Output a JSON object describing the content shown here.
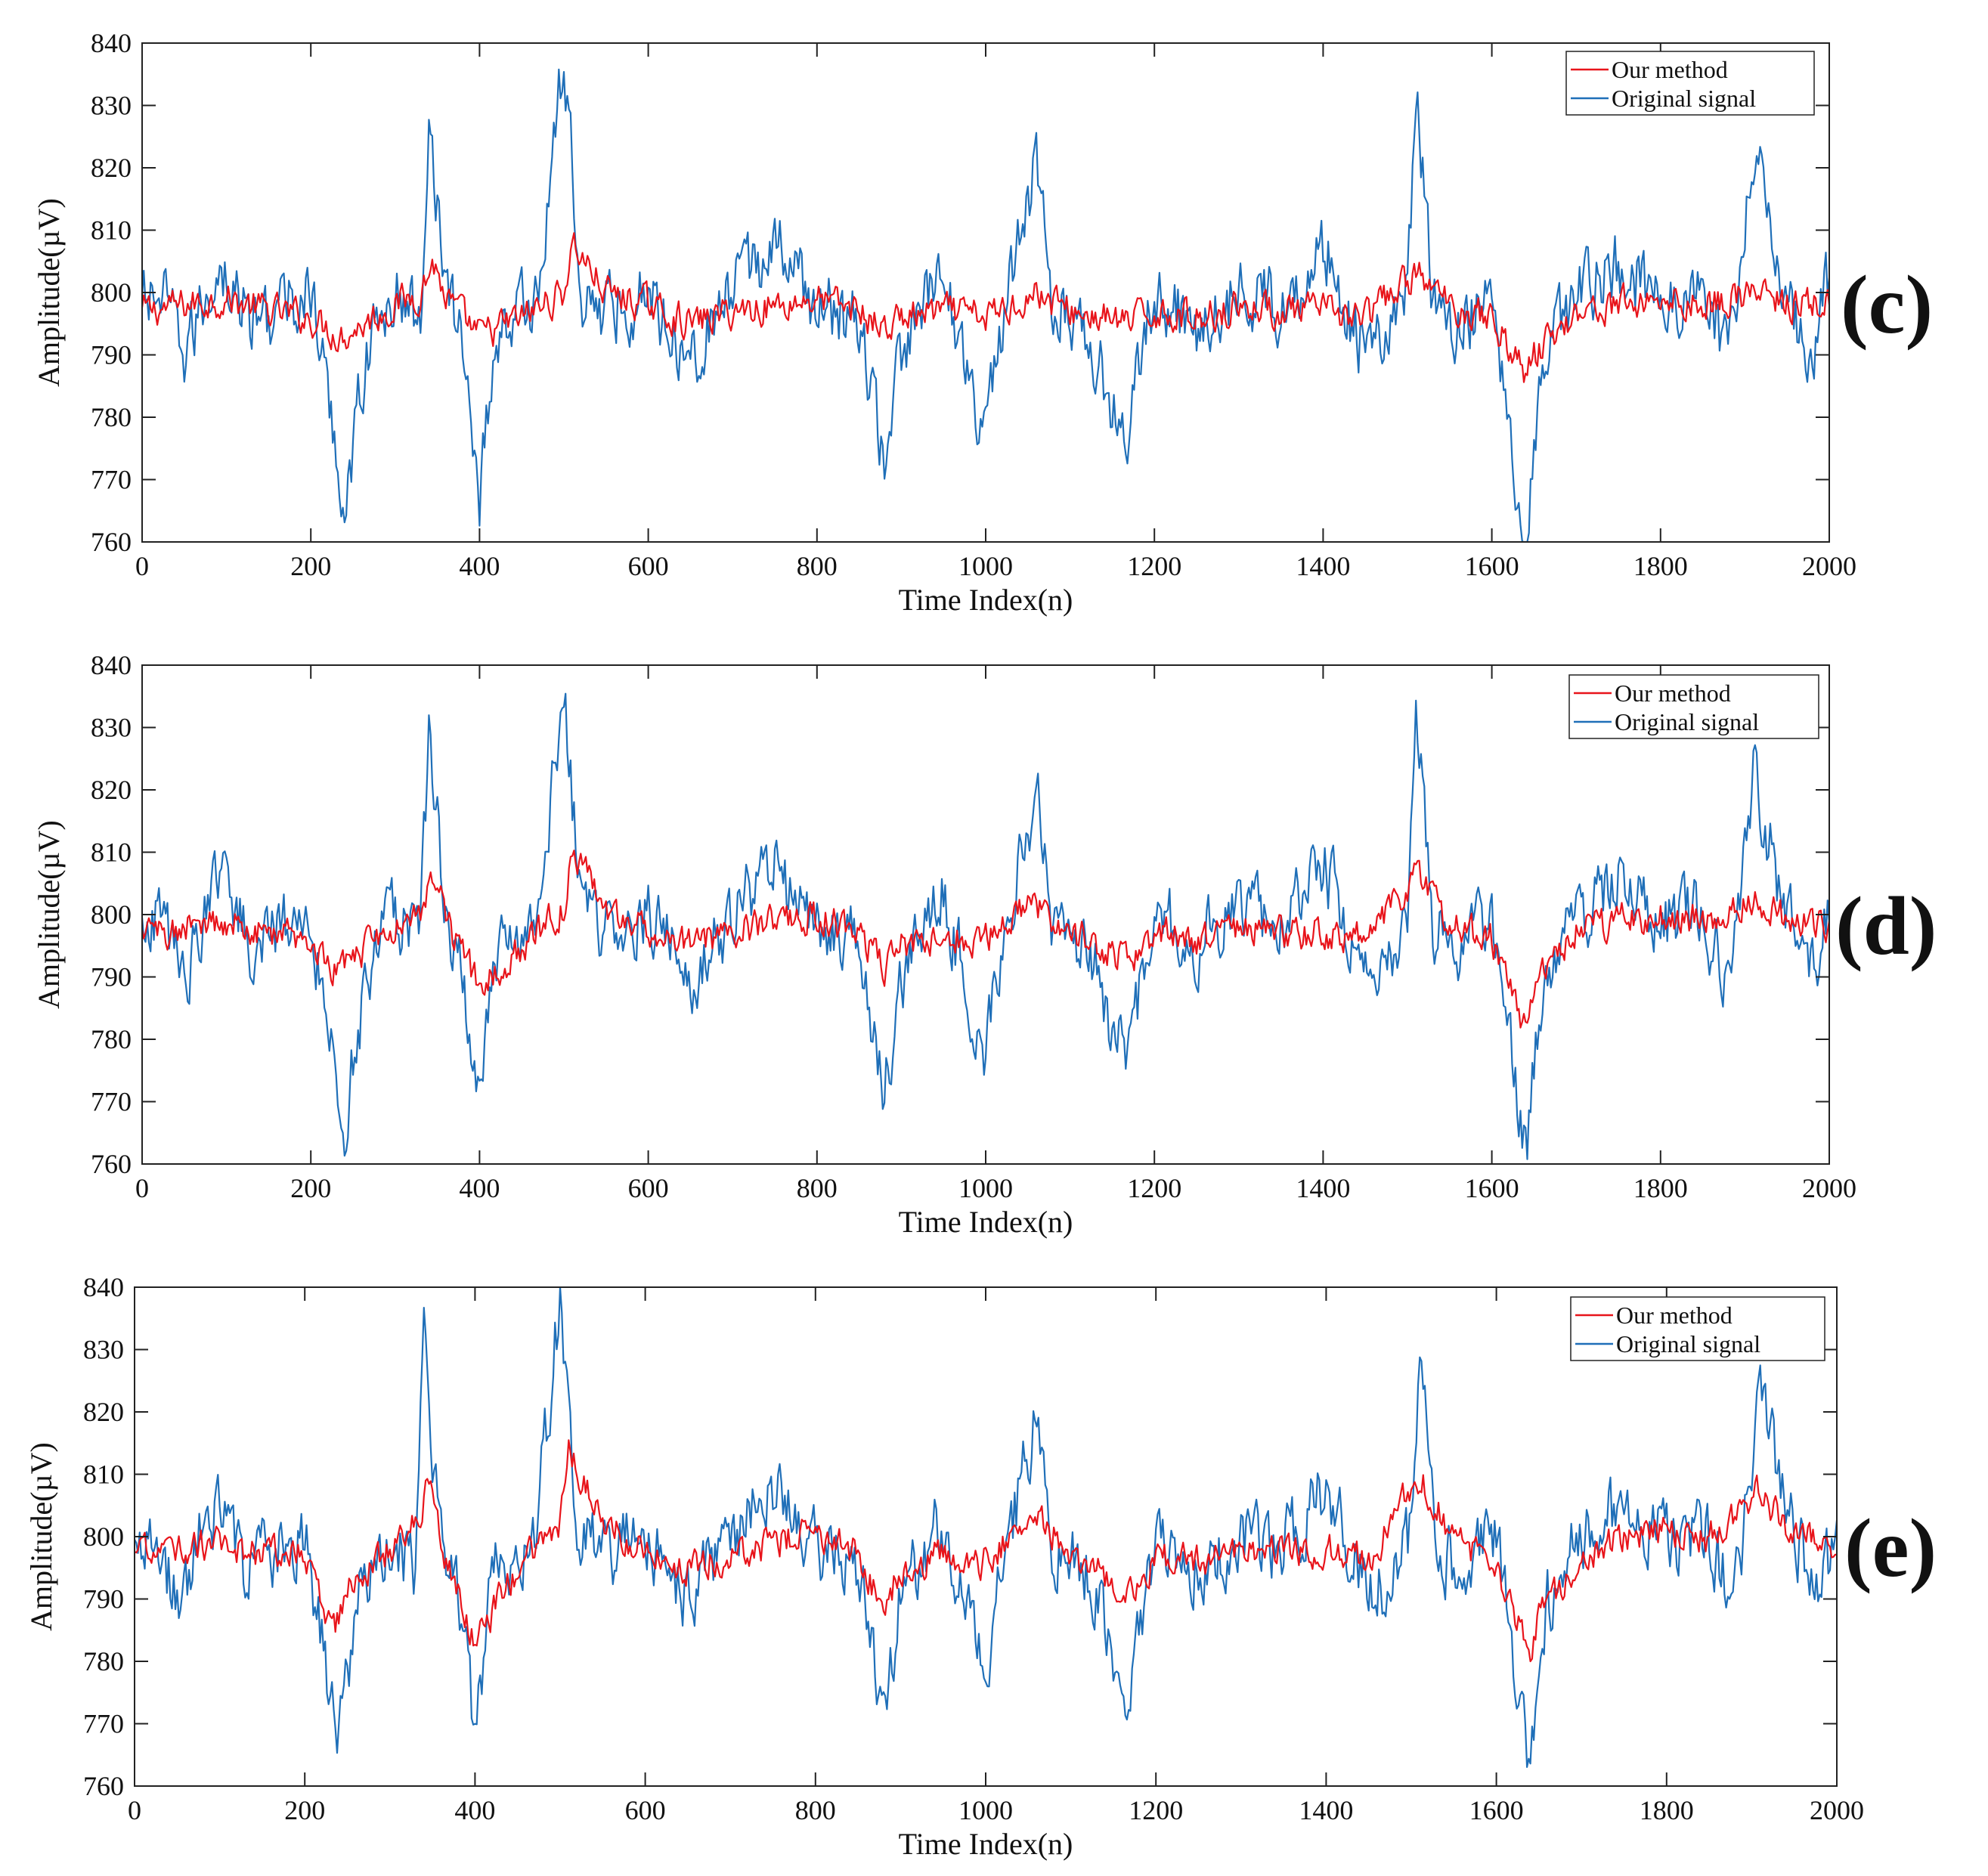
{
  "colors": {
    "our_method": "#e8141b",
    "original_signal": "#1f6fb8",
    "axis": "#222222",
    "background": "#ffffff"
  },
  "chart_data": [
    {
      "type": "line",
      "panel_label": "(c)",
      "xlabel": "Time Index(n)",
      "ylabel": "Amplitude(µV)",
      "xlim": [
        0,
        2000
      ],
      "ylim": [
        760,
        840
      ],
      "x_ticks": [
        "0",
        "200",
        "400",
        "600",
        "800",
        "1000",
        "1200",
        "1400",
        "1600",
        "1800",
        "2000"
      ],
      "y_ticks": [
        "760",
        "770",
        "780",
        "790",
        "800",
        "810",
        "820",
        "830",
        "840"
      ],
      "grid": false,
      "legend_position": "top-right",
      "series": [
        {
          "name": "Our method",
          "color": "#e8141b",
          "x": [
            0,
            50,
            100,
            150,
            200,
            235,
            250,
            300,
            330,
            345,
            360,
            400,
            450,
            500,
            510,
            550,
            600,
            650,
            700,
            750,
            800,
            850,
            880,
            900,
            950,
            1000,
            1060,
            1100,
            1170,
            1200,
            1250,
            1300,
            1350,
            1400,
            1450,
            1510,
            1550,
            1600,
            1640,
            1650,
            1700,
            1750,
            1800,
            1850,
            1910,
            1950,
            2000
          ],
          "values": [
            797,
            798,
            799,
            797,
            796,
            793,
            794,
            798,
            800,
            805,
            799,
            793,
            796,
            800,
            808,
            800,
            798,
            795,
            797,
            798,
            799,
            797,
            794,
            796,
            797,
            796,
            800,
            797,
            795,
            797,
            796,
            798,
            797,
            797,
            796,
            803,
            798,
            796,
            787,
            790,
            797,
            798,
            799,
            798,
            800,
            798,
            798
          ]
        },
        {
          "name": "Original signal",
          "color": "#1f6fb8",
          "x": [
            0,
            20,
            50,
            70,
            90,
            130,
            200,
            240,
            265,
            300,
            330,
            340,
            360,
            380,
            400,
            420,
            450,
            470,
            500,
            520,
            550,
            600,
            650,
            700,
            750,
            800,
            850,
            880,
            900,
            950,
            1000,
            1020,
            1060,
            1080,
            1120,
            1165,
            1200,
            1250,
            1300,
            1350,
            1400,
            1450,
            1480,
            1500,
            1510,
            1530,
            1560,
            1600,
            1640,
            1660,
            1700,
            1750,
            1800,
            1850,
            1880,
            1910,
            1950,
            1980,
            2000
          ],
          "values": [
            798,
            800,
            790,
            797,
            805,
            795,
            800,
            766,
            790,
            800,
            795,
            830,
            800,
            792,
            768,
            794,
            797,
            800,
            838,
            800,
            797,
            800,
            790,
            800,
            808,
            798,
            795,
            773,
            790,
            803,
            777,
            795,
            820,
            798,
            795,
            776,
            800,
            795,
            800,
            798,
            808,
            790,
            795,
            800,
            832,
            798,
            795,
            800,
            760,
            790,
            800,
            805,
            799,
            800,
            790,
            822,
            800,
            790,
            802
          ]
        }
      ]
    },
    {
      "type": "line",
      "panel_label": "(d)",
      "xlabel": "Time Index(n)",
      "ylabel": "Amplitude(µV)",
      "xlim": [
        0,
        2000
      ],
      "ylim": [
        760,
        840
      ],
      "x_ticks": [
        "0",
        "200",
        "400",
        "600",
        "800",
        "1000",
        "1200",
        "1400",
        "1600",
        "1800",
        "2000"
      ],
      "y_ticks": [
        "760",
        "770",
        "780",
        "790",
        "800",
        "810",
        "820",
        "830",
        "840"
      ],
      "grid": false,
      "legend_position": "top-right",
      "series": [
        {
          "name": "Our method",
          "color": "#e8141b",
          "x": [
            0,
            50,
            100,
            150,
            200,
            235,
            250,
            300,
            330,
            345,
            360,
            400,
            450,
            500,
            510,
            550,
            600,
            650,
            700,
            750,
            800,
            850,
            880,
            900,
            950,
            1000,
            1060,
            1100,
            1170,
            1200,
            1250,
            1300,
            1350,
            1400,
            1450,
            1510,
            1550,
            1600,
            1640,
            1650,
            1700,
            1750,
            1800,
            1850,
            1910,
            1950,
            2000
          ],
          "values": [
            797,
            798,
            799,
            797,
            796,
            790,
            793,
            798,
            801,
            807,
            799,
            788,
            795,
            801,
            810,
            801,
            798,
            795,
            797,
            799,
            800,
            797,
            791,
            795,
            797,
            796,
            802,
            797,
            793,
            797,
            796,
            798,
            797,
            797,
            796,
            806,
            798,
            796,
            782,
            788,
            797,
            799,
            800,
            799,
            803,
            799,
            798
          ]
        },
        {
          "name": "Original signal",
          "color": "#1f6fb8",
          "x": [
            0,
            20,
            50,
            70,
            90,
            130,
            200,
            240,
            265,
            300,
            330,
            340,
            360,
            380,
            400,
            420,
            450,
            470,
            500,
            520,
            550,
            600,
            650,
            700,
            750,
            800,
            850,
            880,
            900,
            950,
            1000,
            1020,
            1060,
            1080,
            1120,
            1165,
            1200,
            1250,
            1300,
            1350,
            1400,
            1450,
            1480,
            1500,
            1510,
            1530,
            1560,
            1600,
            1640,
            1660,
            1700,
            1750,
            1800,
            1850,
            1880,
            1910,
            1950,
            1980,
            2000
          ],
          "values": [
            798,
            800,
            790,
            797,
            805,
            795,
            800,
            766,
            790,
            800,
            795,
            830,
            800,
            792,
            768,
            794,
            797,
            800,
            838,
            800,
            797,
            800,
            790,
            800,
            808,
            798,
            795,
            773,
            790,
            803,
            777,
            795,
            820,
            798,
            795,
            776,
            800,
            795,
            800,
            798,
            808,
            790,
            795,
            800,
            832,
            798,
            795,
            800,
            760,
            790,
            800,
            805,
            799,
            800,
            790,
            822,
            800,
            790,
            802
          ]
        }
      ]
    },
    {
      "type": "line",
      "panel_label": "(e)",
      "xlabel": "Time Index(n)",
      "ylabel": "Amplitude(µV)",
      "xlim": [
        0,
        2000
      ],
      "ylim": [
        760,
        840
      ],
      "x_ticks": [
        "0",
        "200",
        "400",
        "600",
        "800",
        "1000",
        "1200",
        "1400",
        "1600",
        "1800",
        "2000"
      ],
      "y_ticks": [
        "760",
        "770",
        "780",
        "790",
        "800",
        "810",
        "820",
        "830",
        "840"
      ],
      "grid": false,
      "legend_position": "top-right",
      "series": [
        {
          "name": "Our method",
          "color": "#e8141b",
          "x": [
            0,
            50,
            100,
            150,
            200,
            235,
            250,
            300,
            330,
            345,
            360,
            400,
            450,
            500,
            510,
            550,
            600,
            650,
            700,
            750,
            800,
            850,
            880,
            900,
            950,
            1000,
            1060,
            1100,
            1170,
            1200,
            1250,
            1300,
            1350,
            1400,
            1450,
            1510,
            1550,
            1600,
            1640,
            1650,
            1700,
            1750,
            1800,
            1850,
            1910,
            1950,
            2000
          ],
          "values": [
            797,
            798,
            799,
            797,
            797,
            785,
            792,
            798,
            802,
            809,
            799,
            783,
            795,
            802,
            813,
            802,
            798,
            795,
            797,
            799,
            801,
            797,
            788,
            795,
            797,
            796,
            804,
            797,
            791,
            797,
            796,
            799,
            797,
            798,
            796,
            810,
            799,
            796,
            780,
            787,
            797,
            800,
            801,
            800,
            807,
            800,
            799
          ]
        },
        {
          "name": "Original signal",
          "color": "#1f6fb8",
          "x": [
            0,
            20,
            50,
            70,
            90,
            130,
            200,
            240,
            265,
            300,
            330,
            340,
            360,
            380,
            400,
            420,
            450,
            470,
            500,
            520,
            550,
            600,
            650,
            700,
            750,
            800,
            850,
            880,
            900,
            950,
            1000,
            1020,
            1060,
            1080,
            1120,
            1165,
            1200,
            1250,
            1300,
            1350,
            1400,
            1450,
            1480,
            1500,
            1510,
            1530,
            1560,
            1600,
            1640,
            1660,
            1700,
            1750,
            1800,
            1850,
            1880,
            1910,
            1950,
            1980,
            2000
          ],
          "values": [
            798,
            800,
            790,
            797,
            805,
            795,
            800,
            766,
            790,
            800,
            795,
            830,
            800,
            792,
            768,
            794,
            797,
            800,
            838,
            800,
            797,
            800,
            790,
            800,
            808,
            798,
            795,
            773,
            790,
            803,
            777,
            795,
            820,
            798,
            795,
            776,
            800,
            795,
            800,
            798,
            808,
            790,
            795,
            800,
            832,
            798,
            795,
            800,
            760,
            790,
            800,
            805,
            799,
            800,
            790,
            822,
            800,
            790,
            802
          ]
        }
      ]
    }
  ]
}
